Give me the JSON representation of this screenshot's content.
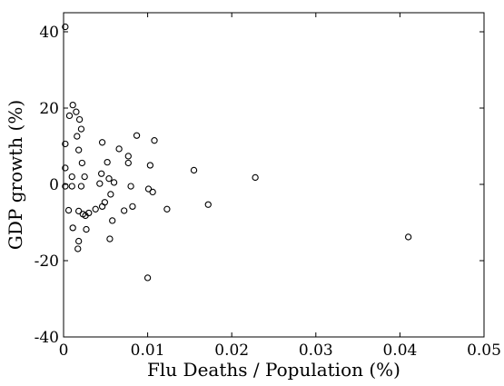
{
  "chart_data": {
    "type": "scatter",
    "title": "",
    "xlabel": "Flu Deaths / Population (%)",
    "ylabel": "GDP growth (%)",
    "xlim": [
      0,
      0.05
    ],
    "ylim": [
      -40,
      45
    ],
    "xticks": [
      0,
      0.01,
      0.02,
      0.03,
      0.04,
      0.05
    ],
    "xtick_labels": [
      "0",
      "0.01",
      "0.02",
      "0.03",
      "0.04",
      "0.05"
    ],
    "yticks": [
      -40,
      -20,
      0,
      20,
      40
    ],
    "ytick_labels": [
      "-40",
      "-20",
      "0",
      "20",
      "40"
    ],
    "grid": false,
    "marker": "open-circle",
    "color": "#000000",
    "series": [
      {
        "points": [
          [
            0.0002,
            41.3
          ],
          [
            0.0011,
            20.8
          ],
          [
            0.0015,
            19.0
          ],
          [
            0.0007,
            18.0
          ],
          [
            0.0019,
            17.0
          ],
          [
            0.0021,
            14.5
          ],
          [
            0.0016,
            12.6
          ],
          [
            0.0002,
            10.6
          ],
          [
            0.0046,
            11.0
          ],
          [
            0.0087,
            12.8
          ],
          [
            0.0108,
            11.5
          ],
          [
            0.0066,
            9.3
          ],
          [
            0.0018,
            9.0
          ],
          [
            0.0022,
            5.6
          ],
          [
            0.0077,
            7.4
          ],
          [
            0.0077,
            5.6
          ],
          [
            0.0052,
            5.8
          ],
          [
            0.0103,
            5.0
          ],
          [
            0.0002,
            4.3
          ],
          [
            0.0155,
            3.7
          ],
          [
            0.0228,
            1.8
          ],
          [
            0.0045,
            2.8
          ],
          [
            0.001,
            2.0
          ],
          [
            0.0025,
            2.0
          ],
          [
            0.0054,
            1.5
          ],
          [
            0.006,
            0.5
          ],
          [
            0.0043,
            0.2
          ],
          [
            0.0002,
            -0.5
          ],
          [
            0.001,
            -0.5
          ],
          [
            0.0021,
            -0.5
          ],
          [
            0.008,
            -0.5
          ],
          [
            0.0101,
            -1.2
          ],
          [
            0.0106,
            -2.0
          ],
          [
            0.0056,
            -2.6
          ],
          [
            0.0049,
            -4.7
          ],
          [
            0.0046,
            -5.8
          ],
          [
            0.0082,
            -5.8
          ],
          [
            0.0172,
            -5.3
          ],
          [
            0.0123,
            -6.5
          ],
          [
            0.0006,
            -6.8
          ],
          [
            0.0038,
            -6.5
          ],
          [
            0.0072,
            -6.9
          ],
          [
            0.0018,
            -7.0
          ],
          [
            0.0023,
            -7.8
          ],
          [
            0.0026,
            -8.2
          ],
          [
            0.003,
            -7.5
          ],
          [
            0.0058,
            -9.5
          ],
          [
            0.0011,
            -11.4
          ],
          [
            0.0027,
            -11.8
          ],
          [
            0.0018,
            -14.9
          ],
          [
            0.0055,
            -14.3
          ],
          [
            0.0017,
            -16.9
          ],
          [
            0.041,
            -13.8
          ],
          [
            0.01,
            -24.5
          ]
        ]
      }
    ]
  }
}
